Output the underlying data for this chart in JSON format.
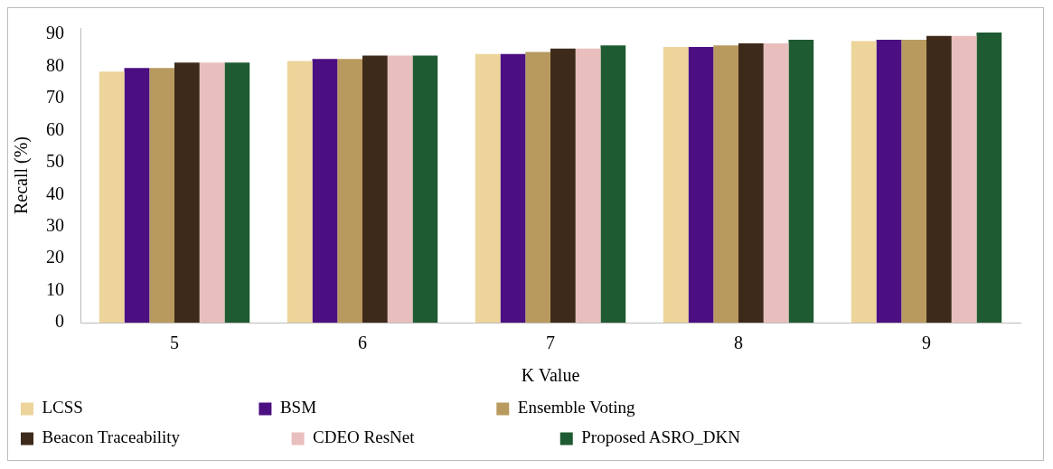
{
  "chart_data": {
    "type": "bar",
    "xlabel": "K Value",
    "ylabel": "Recall (%)",
    "categories": [
      "5",
      "6",
      "7",
      "8",
      "9"
    ],
    "series": [
      {
        "name": "LCSS",
        "color": "#ecd49a",
        "values": [
          78.4,
          81.7,
          83.9,
          86.1,
          87.9
        ]
      },
      {
        "name": "BSM",
        "color": "#4b0f82",
        "values": [
          79.5,
          82.3,
          83.9,
          86.1,
          88.3
        ]
      },
      {
        "name": "Ensemble Voting",
        "color": "#b89a5e",
        "values": [
          79.5,
          82.3,
          84.5,
          86.6,
          88.3
        ]
      },
      {
        "name": "Beacon Traceability",
        "color": "#3e2a1a",
        "values": [
          81.2,
          83.4,
          85.6,
          87.2,
          89.5
        ]
      },
      {
        "name": "CDEO ResNet",
        "color": "#e8bfbd",
        "values": [
          81.2,
          83.4,
          85.6,
          87.2,
          89.5
        ]
      },
      {
        "name": "Proposed ASRO_DKN",
        "color": "#1e5a32",
        "values": [
          81.2,
          83.4,
          86.6,
          88.3,
          90.6
        ]
      }
    ],
    "ylim": [
      0,
      92
    ],
    "yticks": [
      0,
      10,
      20,
      30,
      40,
      50,
      60,
      70,
      80,
      90
    ],
    "grid": false,
    "legend": "bottom"
  }
}
